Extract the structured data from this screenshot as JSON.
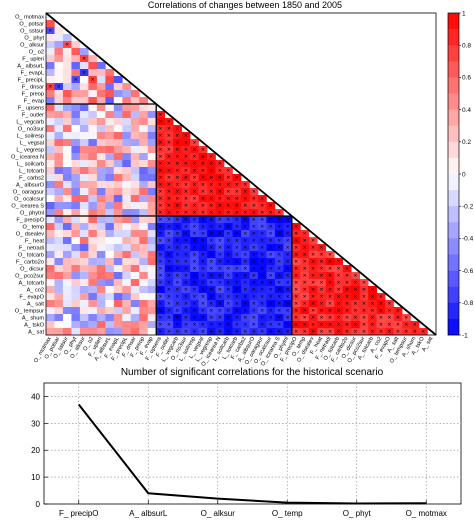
{
  "chart_data": [
    {
      "type": "heatmap",
      "title": "Correlations of changes between 1850 and 2005",
      "variables": [
        "O_ motmax",
        "O_ potsar",
        "O_ sstsur",
        "O_ phyt",
        "O_ alksur",
        "O_ o2",
        "F_ upleri",
        "A_ albsurL",
        "F_ evapL",
        "F_ precipL",
        "F_ dnsar",
        "F_ preop",
        "F_ evap",
        "F_ upsens",
        "F_ outler",
        "L_ vegcarb",
        "O_ no3sur",
        "L_ soilresp",
        "L_ vegsal",
        "L_ vegresp",
        "O_ icearea N",
        "L_ soilcarb",
        "L_ totcarb",
        "F_ carbs2",
        "A_ albsurO",
        "O_ oaragsur",
        "O_ ocalcsur",
        "O_ icearea S",
        "O_ phytnl",
        "F_ precipO",
        "O_ temp",
        "O_ dsealev",
        "F_ heat",
        "F_ netradi",
        "O_ totcarb",
        "F_ carbs2o",
        "O_ dicsur",
        "O_ pco2sur",
        "A_ totcarb",
        "A_ co2",
        "F_ evapO",
        "A_ salt",
        "O_ tempsur",
        "A_ shum",
        "A_ tskO",
        "A_ sat"
      ],
      "groups": [
        {
          "from": 0,
          "to": 12
        },
        {
          "from": 13,
          "to": 28
        },
        {
          "from": 29,
          "to": 45
        }
      ],
      "colorbar": {
        "range": [
          -1,
          1
        ],
        "ticks": [
          "1",
          "0.8",
          "0.6",
          "0.4",
          "0.2",
          "0",
          "-0.2",
          "-0.4",
          "-0.6",
          "-0.8",
          "-1"
        ],
        "negative_color": "#0000ff",
        "positive_color": "#ff0000",
        "neutral_color": "#ffffff"
      }
    },
    {
      "type": "line",
      "title": "Number of significant correlations for the historical scenario",
      "categories": [
        "F_ precipO",
        "A_ albsurL",
        "O_ alksur",
        "O_ temp",
        "O_ phyt",
        "O_ motmax"
      ],
      "x": [
        1,
        2,
        3,
        4,
        5,
        6
      ],
      "values": [
        37,
        4,
        2,
        0.5,
        0.2,
        0.3
      ],
      "xlim": [
        0.5,
        6.5
      ],
      "ylim": [
        0,
        45
      ],
      "yticks": [
        "0",
        "10",
        "20",
        "30",
        "40"
      ],
      "grid": true,
      "line_color": "#000000"
    }
  ]
}
